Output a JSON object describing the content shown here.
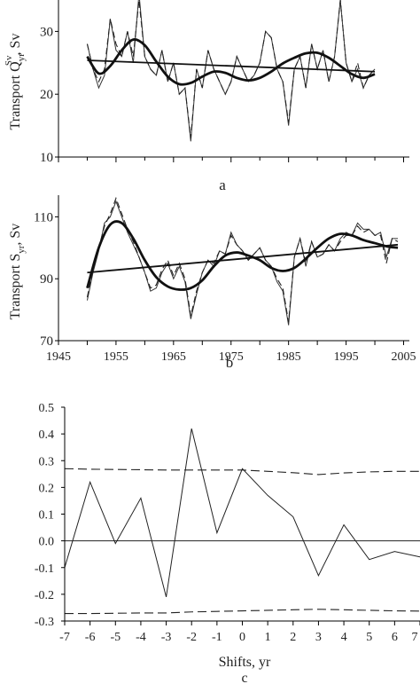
{
  "chart_data": [
    {
      "panel_label": "a",
      "type": "line",
      "ylabel": "Transport Q_yr^Sv, Sv",
      "ylabel_main": "Transport Q",
      "ylabel_sub": "yr",
      "ylabel_sup": "Sv",
      "ylabel_unit": ", Sv",
      "ylim": [
        10,
        35
      ],
      "yticks": [
        10,
        20,
        30
      ],
      "xlim": [
        1945,
        2006
      ],
      "x_ticks_labeled": false,
      "series": [
        {
          "style": "thin-solid",
          "x": [
            1950,
            1951,
            1952,
            1953,
            1954,
            1955,
            1956,
            1957,
            1958,
            1959,
            1960,
            1961,
            1962,
            1963,
            1964,
            1965,
            1966,
            1967,
            1968,
            1969,
            1970,
            1971,
            1972,
            1973,
            1974,
            1975,
            1976,
            1977,
            1978,
            1979,
            1980,
            1981,
            1982,
            1983,
            1984,
            1985,
            1986,
            1987,
            1988,
            1989,
            1990,
            1991,
            1992,
            1993,
            1994,
            1995,
            1996,
            1997,
            1998,
            1999,
            2000
          ],
          "y": [
            28,
            24,
            21,
            23,
            32,
            27,
            26,
            30,
            25,
            36,
            26,
            24,
            23,
            27,
            22,
            25,
            20,
            21,
            12.5,
            24,
            21,
            27,
            24,
            22,
            20,
            22,
            26,
            24,
            22,
            23,
            25,
            30,
            29,
            24,
            22,
            15,
            24,
            26,
            21,
            28,
            24,
            27,
            22,
            26,
            35,
            25,
            22,
            24,
            21,
            23,
            24
          ]
        },
        {
          "style": "dashed",
          "x": [
            1950,
            1951,
            1952,
            1953,
            1954,
            1955,
            1956,
            1957,
            1958,
            1959,
            1960,
            1961,
            1962,
            1963,
            1964,
            1965,
            1966,
            1967,
            1968,
            1969,
            1970,
            1971,
            1972,
            1973,
            1974,
            1975,
            1976,
            1977,
            1978,
            1979,
            1980,
            1981,
            1982,
            1983,
            1984,
            1985,
            1986,
            1987,
            1988,
            1989,
            1990,
            1991,
            1992,
            1993,
            1994,
            1995,
            1996,
            1997,
            1998,
            1999,
            2000
          ],
          "y": [
            28,
            24,
            22,
            24,
            32,
            28,
            26,
            30,
            26,
            35,
            26,
            24,
            23,
            27,
            22,
            25,
            20,
            21,
            13,
            24,
            21,
            27,
            24,
            22,
            20,
            22,
            26,
            24,
            22,
            23,
            25,
            30,
            29,
            24,
            22,
            15.5,
            24,
            26,
            21,
            28,
            24,
            27,
            22,
            26,
            35,
            25,
            22,
            25,
            21,
            23,
            24
          ]
        },
        {
          "style": "thick-smooth",
          "x": [
            1950,
            1952,
            1954,
            1956,
            1958,
            1960,
            1962,
            1964,
            1966,
            1968,
            1970,
            1972,
            1974,
            1976,
            1978,
            1980,
            1982,
            1984,
            1986,
            1988,
            1990,
            1992,
            1994,
            1996,
            1998,
            2000
          ],
          "y": [
            26,
            23.3,
            24.5,
            27,
            28.7,
            27.8,
            25.2,
            22.8,
            21.6,
            21.8,
            22.8,
            23.6,
            23.4,
            22.6,
            22.2,
            22.6,
            23.6,
            24.9,
            25.8,
            26.5,
            26.6,
            25.8,
            24.5,
            23.2,
            22.6,
            23.2
          ]
        },
        {
          "style": "trend",
          "x": [
            1950,
            2000
          ],
          "y": [
            25.4,
            23.6
          ]
        }
      ]
    },
    {
      "panel_label": "b",
      "type": "line",
      "ylabel": "Transport S_yr, Sv",
      "ylabel_main": "Transport S",
      "ylabel_sub": "yr",
      "ylabel_unit": ", Sv",
      "ylim": [
        70,
        117
      ],
      "yticks": [
        70,
        90,
        110
      ],
      "xlim": [
        1945,
        2006
      ],
      "xticks": [
        1945,
        1955,
        1965,
        1975,
        1985,
        1995,
        2005
      ],
      "series": [
        {
          "style": "thin-solid",
          "x": [
            1950,
            1951,
            1952,
            1953,
            1954,
            1955,
            1956,
            1957,
            1958,
            1959,
            1960,
            1961,
            1962,
            1963,
            1964,
            1965,
            1966,
            1967,
            1968,
            1969,
            1970,
            1971,
            1972,
            1973,
            1974,
            1975,
            1976,
            1977,
            1978,
            1979,
            1980,
            1981,
            1982,
            1983,
            1984,
            1985,
            1986,
            1987,
            1988,
            1989,
            1990,
            1991,
            1992,
            1993,
            1994,
            1995,
            1996,
            1997,
            1998,
            1999,
            2000,
            2001,
            2002,
            2003,
            2004
          ],
          "y": [
            83,
            92,
            99,
            108,
            110,
            115,
            110,
            105,
            101,
            97,
            92,
            86,
            87,
            92,
            95,
            90,
            94,
            89,
            77,
            85,
            92,
            96,
            94,
            99,
            98,
            105,
            101,
            99,
            96,
            98,
            100,
            96,
            94,
            89,
            86,
            75,
            97,
            103,
            94,
            102,
            97,
            98,
            101,
            99,
            103,
            105,
            104,
            108,
            106,
            106,
            104,
            105,
            97,
            103,
            103
          ]
        },
        {
          "style": "dashed",
          "x": [
            1950,
            1951,
            1952,
            1953,
            1954,
            1955,
            1956,
            1957,
            1958,
            1959,
            1960,
            1961,
            1962,
            1963,
            1964,
            1965,
            1966,
            1967,
            1968,
            1969,
            1970,
            1971,
            1972,
            1973,
            1974,
            1975,
            1976,
            1977,
            1978,
            1979,
            1980,
            1981,
            1982,
            1983,
            1984,
            1985,
            1986,
            1987,
            1988,
            1989,
            1990,
            1991,
            1992,
            1993,
            1994,
            1995,
            1996,
            1997,
            1998,
            1999,
            2000,
            2001,
            2002,
            2003,
            2004
          ],
          "y": [
            84,
            93,
            100,
            107,
            111,
            116,
            111,
            106,
            102,
            97,
            92,
            87,
            88,
            93,
            96,
            91,
            95,
            90,
            78,
            86,
            92,
            96,
            95,
            99,
            98,
            104,
            101,
            99,
            96,
            98,
            100,
            96,
            94,
            90,
            87,
            76,
            97,
            103,
            95,
            102,
            97,
            98,
            101,
            99,
            102,
            104,
            104,
            107,
            105,
            106,
            104,
            104,
            95,
            103,
            102
          ]
        },
        {
          "style": "thick-smooth",
          "x": [
            1950,
            1952,
            1954,
            1956,
            1958,
            1960,
            1962,
            1964,
            1966,
            1968,
            1970,
            1972,
            1974,
            1976,
            1978,
            1980,
            1982,
            1984,
            1986,
            1988,
            1990,
            1992,
            1994,
            1996,
            1998,
            2000,
            2002,
            2004
          ],
          "y": [
            87,
            100,
            107.5,
            108,
            103,
            96,
            90.5,
            87.5,
            86.5,
            87,
            89.5,
            94,
            97.5,
            98.5,
            97.5,
            96,
            93.5,
            92.5,
            93.5,
            96.5,
            100,
            103,
            104.5,
            104,
            102.5,
            101.5,
            100.5,
            100
          ]
        },
        {
          "style": "trend",
          "x": [
            1950,
            2004
          ],
          "y": [
            92,
            101
          ]
        }
      ]
    },
    {
      "panel_label": "c",
      "type": "line",
      "xlabel": "Shifts, yr",
      "xlim": [
        -7,
        7
      ],
      "ylim": [
        -0.3,
        0.5
      ],
      "xticks": [
        -7,
        -6,
        -5,
        -4,
        -3,
        -2,
        -1,
        0,
        1,
        2,
        3,
        4,
        5,
        6,
        7
      ],
      "yticks": [
        -0.3,
        -0.2,
        -0.1,
        0.0,
        0.1,
        0.2,
        0.3,
        0.4,
        0.5
      ],
      "ytick_labels": [
        "-0.3",
        "-0.2",
        "-0.1",
        "0.0",
        "0.1",
        "0.2",
        "0.3",
        "0.4",
        "0.5"
      ],
      "series": [
        {
          "style": "correlation",
          "x": [
            -7,
            -6,
            -5,
            -4,
            -3,
            -2,
            -1,
            0,
            1,
            2,
            3,
            4,
            5,
            6,
            7
          ],
          "y": [
            -0.1,
            0.22,
            -0.01,
            0.16,
            -0.21,
            0.42,
            0.03,
            0.27,
            0.17,
            0.09,
            -0.13,
            0.06,
            -0.07,
            -0.04,
            -0.06
          ]
        },
        {
          "style": "significance-upper",
          "x": [
            -7,
            -6,
            -5,
            -4,
            -3,
            -2,
            -1,
            0,
            1,
            2,
            3,
            4,
            5,
            6,
            7
          ],
          "y": [
            0.27,
            0.268,
            0.267,
            0.266,
            0.265,
            0.265,
            0.265,
            0.265,
            0.26,
            0.255,
            0.248,
            0.254,
            0.258,
            0.26,
            0.26
          ]
        },
        {
          "style": "significance-lower",
          "x": [
            -7,
            -6,
            -5,
            -4,
            -3,
            -2,
            -1,
            0,
            1,
            2,
            3,
            4,
            5,
            6,
            7
          ],
          "y": [
            -0.272,
            -0.272,
            -0.271,
            -0.27,
            -0.27,
            -0.266,
            -0.264,
            -0.262,
            -0.26,
            -0.258,
            -0.256,
            -0.258,
            -0.26,
            -0.262,
            -0.263
          ]
        },
        {
          "style": "zero-line",
          "x": [
            -7,
            7
          ],
          "y": [
            0,
            0
          ]
        }
      ]
    }
  ]
}
